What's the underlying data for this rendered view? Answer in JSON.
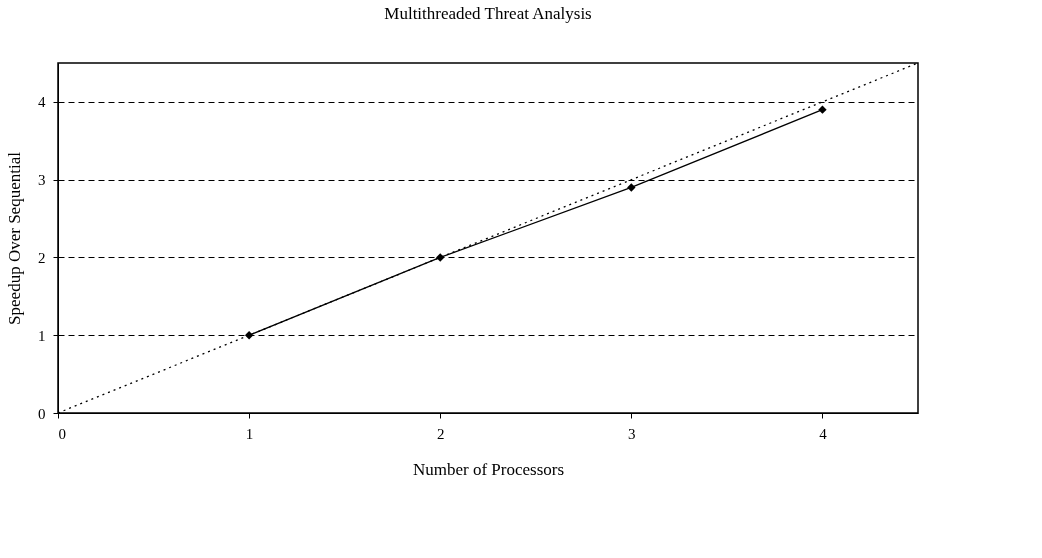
{
  "chart_data": {
    "type": "line",
    "title": "Multithreaded Threat Analysis",
    "xlabel": "Number of Processors",
    "ylabel": "Speedup Over Sequential",
    "series": [
      {
        "color": "#000000",
        "x": [
          1,
          2,
          3,
          4
        ],
        "values": [
          1,
          2,
          2.9,
          3.9
        ]
      },
      {
        "color": "#000000",
        "x": [
          0,
          4.5
        ],
        "values": [
          0,
          4.5
        ],
        "line_style": "dotted",
        "marker": "none"
      }
    ],
    "xlim": [
      0,
      4.5
    ],
    "xticks": [
      0,
      1,
      2,
      3,
      4
    ],
    "ylim": [
      0,
      4.5
    ],
    "yticks": [
      0,
      1,
      2,
      3,
      4
    ],
    "grid": "y",
    "marker": "diamond",
    "line_style": "solid"
  }
}
